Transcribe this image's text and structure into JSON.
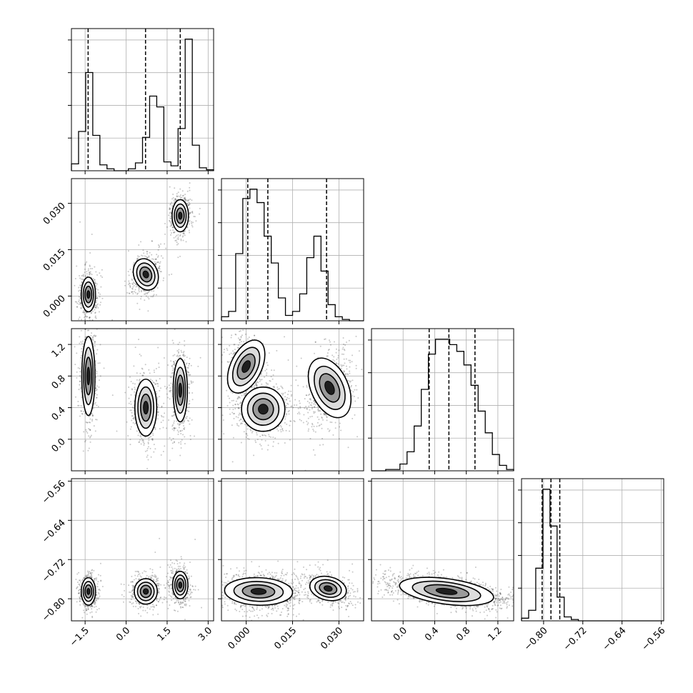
{
  "chart_data": {
    "type": "corner",
    "n_params": 4,
    "grid": true,
    "colors": {
      "line": "#000000",
      "grid": "#b0b0b0",
      "fill": "#000000"
    },
    "params": [
      {
        "range": [
          -2.0,
          3.2
        ],
        "ticks": [
          -1.5,
          0.0,
          1.5,
          3.0
        ],
        "tick_labels": [
          "−1.5",
          "0.0",
          "1.5",
          "3.0"
        ]
      },
      {
        "range": [
          -0.008,
          0.038
        ],
        "ticks": [
          0.0,
          0.015,
          0.03
        ],
        "tick_labels": [
          "0.000",
          "0.015",
          "0.030"
        ]
      },
      {
        "range": [
          -0.4,
          1.4
        ],
        "ticks": [
          0.0,
          0.4,
          0.8,
          1.2
        ],
        "tick_labels": [
          "0.0",
          "0.4",
          "0.8",
          "1.2"
        ]
      },
      {
        "range": [
          -0.845,
          -0.555
        ],
        "ticks": [
          -0.8,
          -0.72,
          -0.64,
          -0.56
        ],
        "tick_labels": [
          "−0.80",
          "−0.72",
          "−0.64",
          "−0.56"
        ]
      }
    ],
    "quantiles": [
      [
        -1.39,
        0.71,
        1.98
      ],
      [
        0.0005,
        0.007,
        0.026
      ],
      [
        0.33,
        0.58,
        0.91
      ],
      [
        -0.803,
        -0.785,
        -0.767
      ]
    ],
    "histograms": [
      {
        "bins": [
          -2.0,
          -1.74,
          -1.48,
          -1.22,
          -0.96,
          -0.7,
          -0.44,
          -0.18,
          0.08,
          0.34,
          0.6,
          0.86,
          1.12,
          1.38,
          1.64,
          1.9,
          2.16,
          2.42,
          2.68,
          2.94,
          3.2
        ],
        "counts": [
          0.07,
          0.4,
          1.0,
          0.36,
          0.06,
          0.02,
          0.0,
          0.0,
          0.02,
          0.08,
          0.34,
          0.76,
          0.65,
          0.09,
          0.05,
          0.43,
          1.34,
          0.26,
          0.03,
          0.01
        ]
      },
      {
        "bins": [
          -0.008,
          -0.0057,
          -0.0034,
          -0.0011,
          0.0012,
          0.0035,
          0.0058,
          0.0081,
          0.0104,
          0.0127,
          0.015,
          0.0173,
          0.0196,
          0.0219,
          0.0242,
          0.0265,
          0.0288,
          0.0311,
          0.0334,
          0.0357,
          0.038
        ],
        "counts": [
          0.03,
          0.07,
          0.5,
          0.91,
          0.98,
          0.88,
          0.63,
          0.43,
          0.17,
          0.04,
          0.07,
          0.2,
          0.47,
          0.63,
          0.37,
          0.12,
          0.03,
          0.01,
          0.0,
          0.0
        ]
      },
      {
        "bins": [
          -0.4,
          -0.31,
          -0.22,
          -0.13,
          -0.04,
          0.05,
          0.14,
          0.23,
          0.32,
          0.41,
          0.5,
          0.59,
          0.68,
          0.77,
          0.86,
          0.95,
          1.04,
          1.13,
          1.22,
          1.31,
          1.4
        ],
        "counts": [
          0.0,
          0.0,
          0.01,
          0.01,
          0.05,
          0.14,
          0.33,
          0.6,
          0.86,
          0.97,
          0.97,
          0.93,
          0.88,
          0.78,
          0.63,
          0.44,
          0.28,
          0.12,
          0.04,
          0.01
        ]
      },
      {
        "bins": [
          -0.845,
          -0.8305,
          -0.816,
          -0.8015,
          -0.787,
          -0.7725,
          -0.758,
          -0.7435,
          -0.729,
          -0.7145,
          -0.7,
          -0.6855,
          -0.671,
          -0.6565,
          -0.642,
          -0.6275,
          -0.613,
          -0.5985,
          -0.584,
          -0.5695,
          -0.555
        ],
        "counts": [
          0.02,
          0.08,
          0.4,
          1.0,
          0.72,
          0.18,
          0.03,
          0.01,
          0.0,
          0.0,
          0.0,
          0.0,
          0.0,
          0.0,
          0.0,
          0.0,
          0.0,
          0.0,
          0.0,
          0.0
        ]
      }
    ],
    "pairs": [
      {
        "x_param": 0,
        "y_param": 1,
        "modes": [
          {
            "cx": -1.38,
            "cy": 0.0005,
            "sx": 0.13,
            "sy": 0.0028,
            "rho": 0.0,
            "w": 0.33
          },
          {
            "cx": 0.72,
            "cy": 0.007,
            "sx": 0.22,
            "sy": 0.0026,
            "rho": 0.3,
            "w": 0.33
          },
          {
            "cx": 1.98,
            "cy": 0.026,
            "sx": 0.15,
            "sy": 0.0026,
            "rho": 0.0,
            "w": 0.34
          }
        ]
      },
      {
        "x_param": 0,
        "y_param": 2,
        "modes": [
          {
            "cx": -1.38,
            "cy": 0.8,
            "sx": 0.12,
            "sy": 0.25,
            "rho": 0.0,
            "w": 0.33
          },
          {
            "cx": 0.72,
            "cy": 0.4,
            "sx": 0.2,
            "sy": 0.18,
            "rho": 0.0,
            "w": 0.33
          },
          {
            "cx": 1.98,
            "cy": 0.62,
            "sx": 0.13,
            "sy": 0.2,
            "rho": 0.0,
            "w": 0.34
          }
        ]
      },
      {
        "x_param": 0,
        "y_param": 3,
        "modes": [
          {
            "cx": -1.38,
            "cy": -0.785,
            "sx": 0.13,
            "sy": 0.014,
            "rho": 0.0,
            "w": 0.33
          },
          {
            "cx": 0.72,
            "cy": -0.785,
            "sx": 0.21,
            "sy": 0.013,
            "rho": 0.0,
            "w": 0.33
          },
          {
            "cx": 1.98,
            "cy": -0.772,
            "sx": 0.14,
            "sy": 0.014,
            "rho": 0.0,
            "w": 0.34
          }
        ]
      },
      {
        "x_param": 1,
        "y_param": 2,
        "modes": [
          {
            "cx": 0.0,
            "cy": 0.92,
            "sx": 0.0025,
            "sy": 0.18,
            "rho": -0.3,
            "w": 0.22
          },
          {
            "cx": 0.0055,
            "cy": 0.38,
            "sx": 0.0035,
            "sy": 0.14,
            "rho": 0.0,
            "w": 0.44
          },
          {
            "cx": 0.027,
            "cy": 0.65,
            "sx": 0.003,
            "sy": 0.2,
            "rho": 0.3,
            "w": 0.34
          }
        ]
      },
      {
        "x_param": 1,
        "y_param": 3,
        "modes": [
          {
            "cx": 0.004,
            "cy": -0.785,
            "sx": 0.0055,
            "sy": 0.014,
            "rho": -0.1,
            "w": 0.66
          },
          {
            "cx": 0.0265,
            "cy": -0.779,
            "sx": 0.003,
            "sy": 0.012,
            "rho": -0.4,
            "w": 0.34
          }
        ]
      },
      {
        "x_param": 2,
        "y_param": 3,
        "modes": [
          {
            "cx": 0.55,
            "cy": -0.785,
            "sx": 0.3,
            "sy": 0.013,
            "rho": -0.55,
            "w": 1.0
          }
        ]
      }
    ]
  }
}
